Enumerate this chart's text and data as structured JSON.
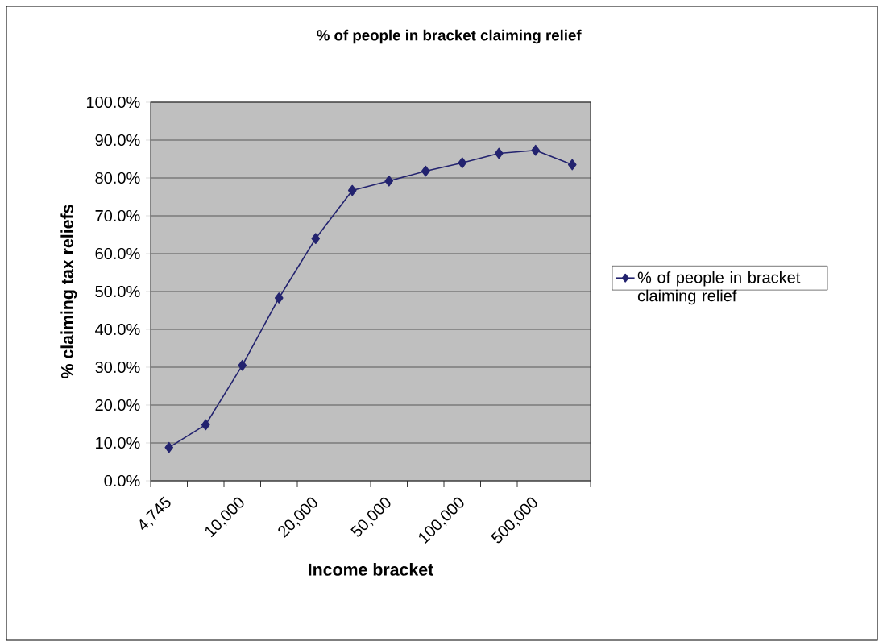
{
  "chart_data": {
    "type": "line",
    "title": "% of people in bracket claiming relief",
    "xlabel": "Income bracket",
    "ylabel": "% claiming tax reliefs",
    "categories": [
      "4,745",
      null,
      "10,000",
      null,
      "20,000",
      null,
      "50,000",
      null,
      "100,000",
      null,
      "500,000",
      null
    ],
    "series": [
      {
        "name": "% of people in bracket claiming relief",
        "color": "#23236f",
        "values": [
          8.8,
          14.8,
          30.5,
          48.3,
          64.0,
          76.7,
          79.2,
          81.8,
          84.0,
          86.5,
          87.3,
          83.5
        ]
      }
    ],
    "ylim": [
      0,
      100
    ],
    "yticks": [
      {
        "value": 0,
        "label": "0.0%"
      },
      {
        "value": 10,
        "label": "10.0%"
      },
      {
        "value": 20,
        "label": "20.0%"
      },
      {
        "value": 30,
        "label": "30.0%"
      },
      {
        "value": 40,
        "label": "40.0%"
      },
      {
        "value": 50,
        "label": "50.0%"
      },
      {
        "value": 60,
        "label": "60.0%"
      },
      {
        "value": 70,
        "label": "70.0%"
      },
      {
        "value": 80,
        "label": "80.0%"
      },
      {
        "value": 90,
        "label": "90.0%"
      },
      {
        "value": 100,
        "label": "100.0%"
      }
    ],
    "grid": "y",
    "legend": "right",
    "marker": "diamond",
    "line_style": "solid"
  }
}
